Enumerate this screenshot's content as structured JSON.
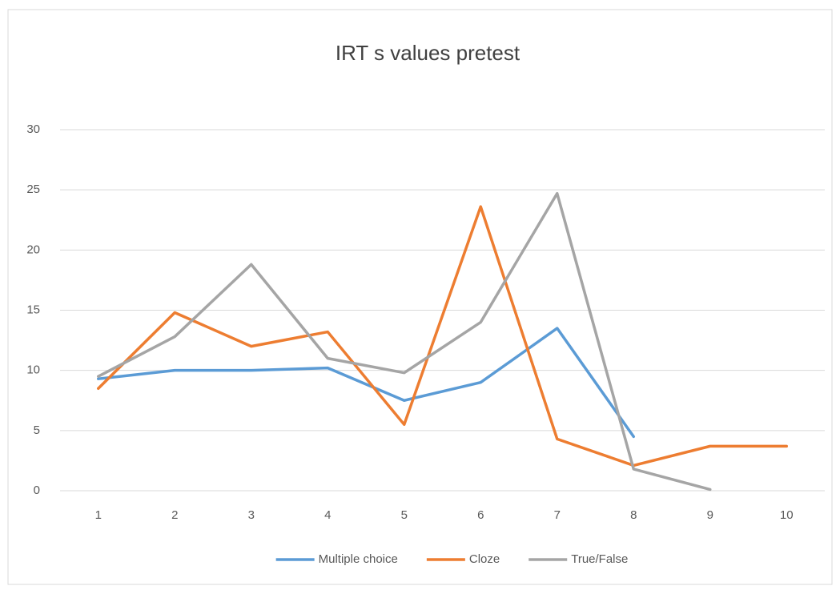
{
  "chart_data": {
    "type": "line",
    "title": "IRT s values pretest",
    "categories": [
      "1",
      "2",
      "3",
      "4",
      "5",
      "6",
      "7",
      "8",
      "9",
      "10"
    ],
    "series": [
      {
        "name": "Multiple choice",
        "color": "#5b9bd5",
        "values": [
          9.3,
          10.0,
          10.0,
          10.2,
          7.5,
          9.0,
          13.5,
          4.5,
          null,
          null
        ]
      },
      {
        "name": "Cloze",
        "color": "#ed7d31",
        "values": [
          8.5,
          14.8,
          12.0,
          13.2,
          5.5,
          23.6,
          4.3,
          2.1,
          3.7,
          3.7
        ]
      },
      {
        "name": "True/False",
        "color": "#a5a5a5",
        "values": [
          9.5,
          12.8,
          18.8,
          11.0,
          9.8,
          14.0,
          24.7,
          1.8,
          0.1,
          null
        ]
      }
    ],
    "ylim": [
      0,
      30
    ],
    "yticks": [
      0,
      5,
      10,
      15,
      20,
      25,
      30
    ],
    "grid": true,
    "legend": "bottom"
  }
}
